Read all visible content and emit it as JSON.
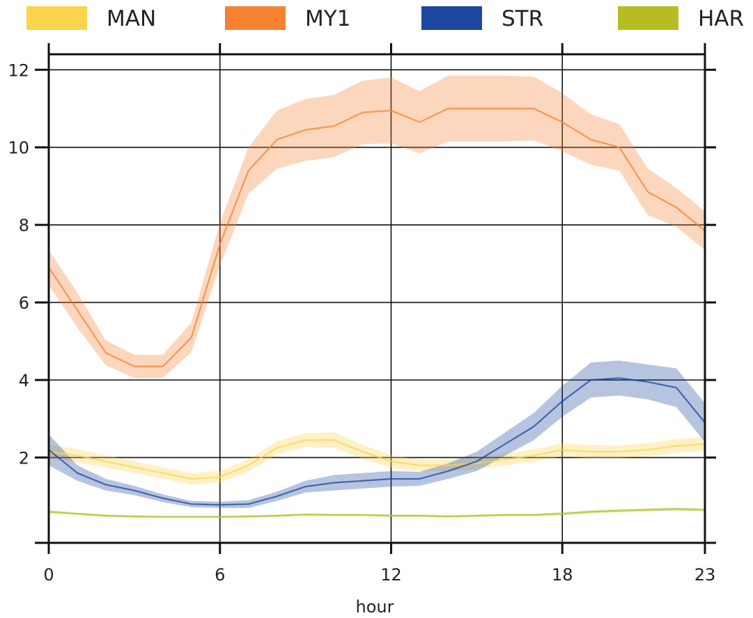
{
  "chart_data": {
    "type": "line",
    "xlabel": "hour",
    "ylabel": "",
    "xlim": [
      0,
      23
    ],
    "ylim": [
      -0.2,
      12.4
    ],
    "xticks": [
      0,
      6,
      12,
      18,
      23
    ],
    "yticks": [
      2,
      4,
      6,
      8,
      10,
      12
    ],
    "grid": true,
    "legend_placement": "top",
    "x": [
      0,
      1,
      2,
      3,
      4,
      5,
      6,
      7,
      8,
      9,
      10,
      11,
      12,
      13,
      14,
      15,
      16,
      17,
      18,
      19,
      20,
      21,
      22,
      23
    ],
    "series": [
      {
        "name": "MAN",
        "color": "#FCD34D",
        "values": [
          2.15,
          2.05,
          1.9,
          1.75,
          1.6,
          1.45,
          1.5,
          1.8,
          2.25,
          2.45,
          2.45,
          2.15,
          1.9,
          1.8,
          1.8,
          1.85,
          1.95,
          2.05,
          2.2,
          2.15,
          2.15,
          2.2,
          2.3,
          2.35
        ],
        "band_halfwidth": [
          0.18,
          0.17,
          0.16,
          0.15,
          0.15,
          0.15,
          0.15,
          0.16,
          0.17,
          0.18,
          0.2,
          0.18,
          0.16,
          0.15,
          0.15,
          0.15,
          0.15,
          0.16,
          0.17,
          0.17,
          0.16,
          0.17,
          0.17,
          0.18
        ]
      },
      {
        "name": "MY1",
        "color": "#F58231",
        "values": [
          6.9,
          5.8,
          4.7,
          4.35,
          4.35,
          5.1,
          7.5,
          9.4,
          10.2,
          10.45,
          10.55,
          10.9,
          10.95,
          10.65,
          11.0,
          11.0,
          11.0,
          11.0,
          10.65,
          10.2,
          10.0,
          8.85,
          8.45,
          7.85
        ],
        "band_halfwidth": [
          0.45,
          0.45,
          0.32,
          0.3,
          0.3,
          0.38,
          0.55,
          0.6,
          0.75,
          0.8,
          0.8,
          0.82,
          0.85,
          0.8,
          0.85,
          0.85,
          0.85,
          0.82,
          0.75,
          0.65,
          0.6,
          0.6,
          0.5,
          0.5
        ]
      },
      {
        "name": "STR",
        "color": "#1C46A0",
        "values": [
          2.2,
          1.6,
          1.3,
          1.15,
          0.95,
          0.8,
          0.78,
          0.8,
          1.0,
          1.25,
          1.35,
          1.4,
          1.45,
          1.45,
          1.65,
          1.9,
          2.35,
          2.8,
          3.45,
          4.0,
          4.05,
          3.95,
          3.8,
          2.9
        ],
        "band_halfwidth": [
          0.4,
          0.2,
          0.15,
          0.12,
          0.1,
          0.08,
          0.08,
          0.1,
          0.12,
          0.15,
          0.2,
          0.2,
          0.2,
          0.18,
          0.2,
          0.25,
          0.3,
          0.35,
          0.4,
          0.45,
          0.45,
          0.45,
          0.5,
          0.5
        ]
      },
      {
        "name": "HAR",
        "color": "#B5BD23",
        "values": [
          0.6,
          0.55,
          0.5,
          0.48,
          0.47,
          0.47,
          0.47,
          0.48,
          0.5,
          0.53,
          0.52,
          0.52,
          0.5,
          0.5,
          0.48,
          0.5,
          0.52,
          0.52,
          0.55,
          0.6,
          0.63,
          0.65,
          0.67,
          0.65
        ],
        "band_halfwidth": [
          0.04,
          0.03,
          0.03,
          0.03,
          0.03,
          0.03,
          0.03,
          0.03,
          0.03,
          0.03,
          0.03,
          0.03,
          0.03,
          0.03,
          0.03,
          0.03,
          0.03,
          0.03,
          0.04,
          0.04,
          0.04,
          0.04,
          0.04,
          0.04
        ]
      }
    ]
  }
}
